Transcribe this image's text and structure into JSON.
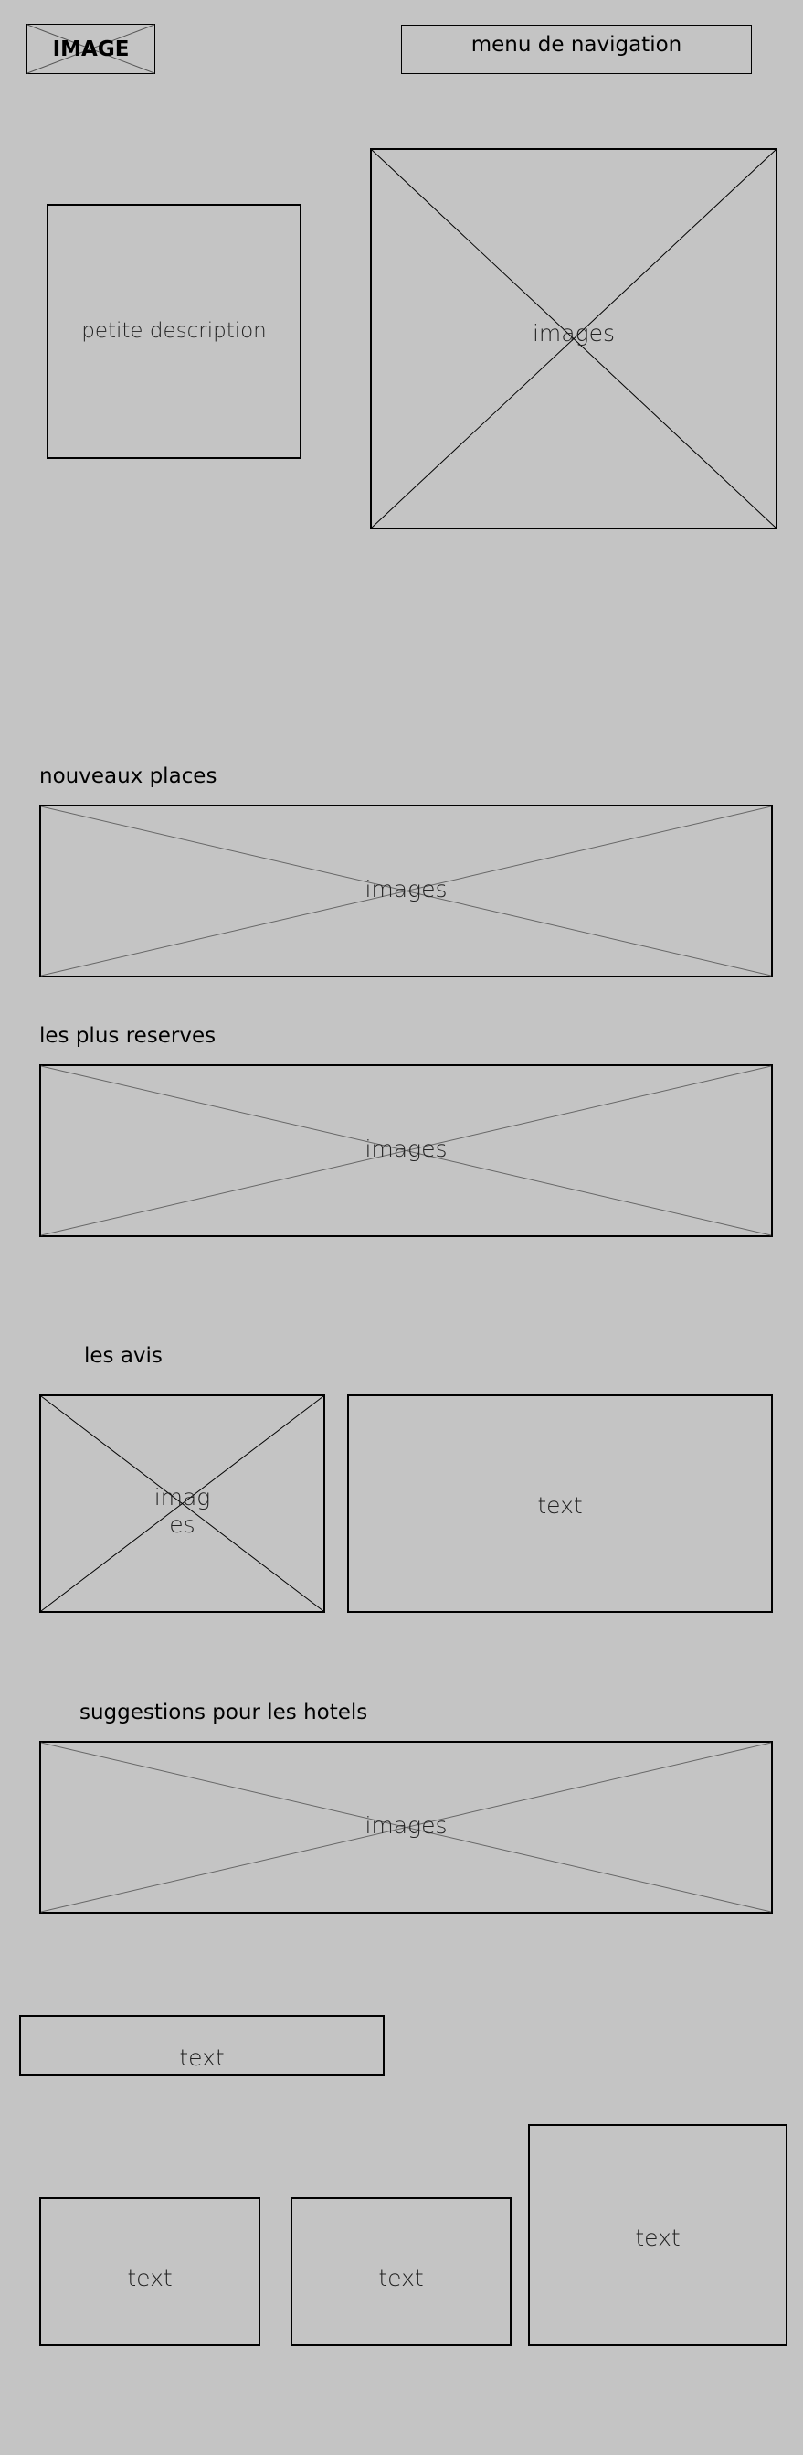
{
  "header": {
    "logo_label": "IMAGE",
    "nav_label": "menu de navigation"
  },
  "hero": {
    "description": "petite description",
    "image_label": "images"
  },
  "sections": {
    "new_places": {
      "title": "nouveaux places",
      "image_label": "images"
    },
    "most_booked": {
      "title": "les plus reserves",
      "image_label": "images"
    },
    "reviews": {
      "title": "les avis",
      "image_label": "imag\nes",
      "text": "text"
    },
    "hotel_suggestions": {
      "title": "suggestions pour les hotels",
      "image_label": "images"
    }
  },
  "footer": {
    "wide_text": "text",
    "card_1_text": "text",
    "card_2_text": "text",
    "card_3_text": "text"
  }
}
